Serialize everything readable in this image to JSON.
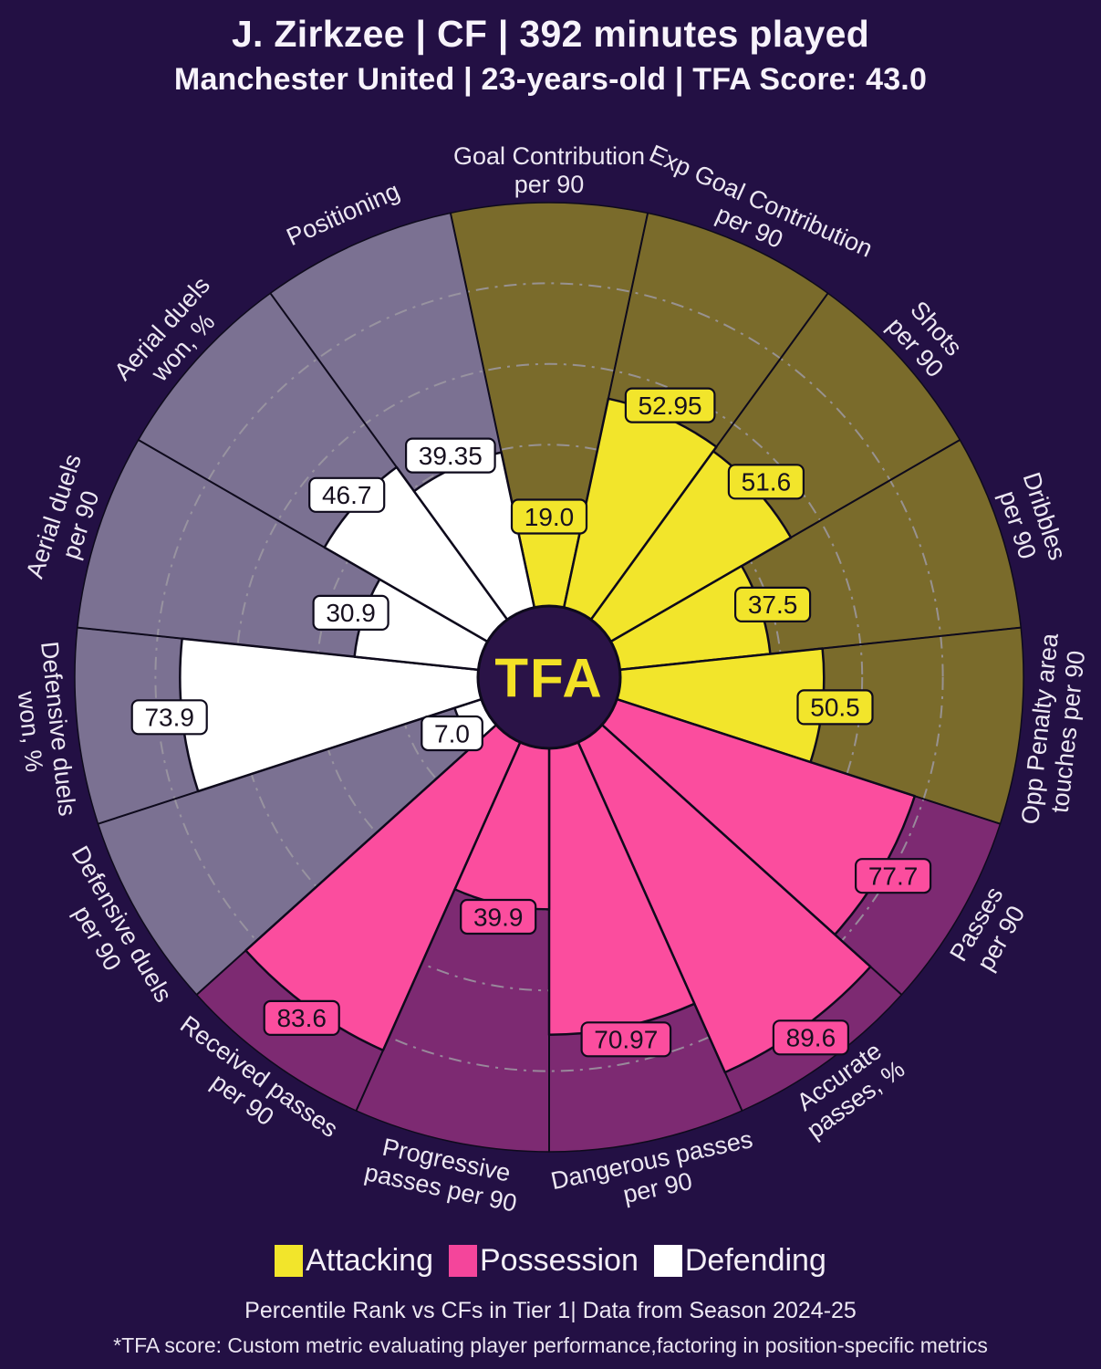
{
  "chart_data": {
    "type": "pizza",
    "title": "J. Zirkzee | CF | 392 minutes played",
    "subtitle": "Manchester United | 23-years-old | TFA Score: 43.0",
    "center_logo": "TFA",
    "scale": {
      "min": 0,
      "max": 100
    },
    "gridlines": [
      20,
      40,
      60,
      80
    ],
    "categories": [
      "Goal Contribution per 90",
      "Exp Goal Contribution per 90",
      "Shots per 90",
      "Dribbles per 90",
      "Opp Penalty area touches per 90",
      "Passes per 90",
      "Accurate passes, %",
      "Dangerous passes per 90",
      "Progressive passes per 90",
      "Received passes per 90",
      "Defensive duels per 90",
      "Defensive duels won, %",
      "Aerial duels per 90",
      "Aerial duels won, %",
      "Positioning"
    ],
    "category_lines": [
      [
        "Goal Contribution",
        "per 90"
      ],
      [
        "Exp Goal Contribution",
        "per 90"
      ],
      [
        "Shots",
        "per 90"
      ],
      [
        "Dribbles",
        "per 90"
      ],
      [
        "Opp Penalty area",
        "touches per 90"
      ],
      [
        "Passes",
        "per 90"
      ],
      [
        "Accurate",
        "passes, %"
      ],
      [
        "Dangerous passes",
        "per 90"
      ],
      [
        "Progressive",
        "passes per 90"
      ],
      [
        "Received passes",
        "per 90"
      ],
      [
        "Defensive duels",
        "per 90"
      ],
      [
        "Defensive duels",
        "won, %"
      ],
      [
        "Aerial duels",
        "per 90"
      ],
      [
        "Aerial duels",
        "won, %"
      ],
      [
        "Positioning"
      ]
    ],
    "values": [
      19.0,
      52.95,
      51.6,
      37.5,
      50.5,
      77.7,
      89.6,
      70.97,
      39.9,
      83.6,
      7.0,
      73.9,
      30.9,
      46.7,
      39.35
    ],
    "value_labels": [
      "19.0",
      "52.95",
      "51.6",
      "37.5",
      "50.5",
      "77.7",
      "89.6",
      "70.97",
      "39.9",
      "83.6",
      "7.0",
      "73.9",
      "30.9",
      "46.7",
      "39.35"
    ],
    "groups": [
      "attacking",
      "attacking",
      "attacking",
      "attacking",
      "attacking",
      "possession",
      "possession",
      "possession",
      "possession",
      "possession",
      "defending",
      "defending",
      "defending",
      "defending",
      "defending"
    ],
    "legend": [
      {
        "key": "attacking",
        "label": "Attacking",
        "color": "#f2e52b"
      },
      {
        "key": "possession",
        "label": "Possession",
        "color": "#f4459b"
      },
      {
        "key": "defending",
        "label": "Defending",
        "color": "#ffffff"
      }
    ],
    "caption": "Percentile Rank vs CFs in Tier 1| Data from Season 2024-25",
    "footnote": "*TFA score: Custom metric evaluating player performance,factoring in position-specific metrics",
    "colors": {
      "page_bg": "#231044",
      "slice": {
        "attacking": "#f2e52b",
        "possession": "#fb4d9e",
        "defending": "#ffffff"
      },
      "sector_bg": {
        "attacking": "#7a6b2b",
        "possession": "#7d2a72",
        "defending": "#7b7192"
      },
      "grid": "#9d99a2",
      "outline": "#0e0a1c",
      "hub_bg": "#2a1347",
      "logo": "#f3e126",
      "badge_text": "#17101f",
      "label_text": "#ece7f2"
    }
  }
}
